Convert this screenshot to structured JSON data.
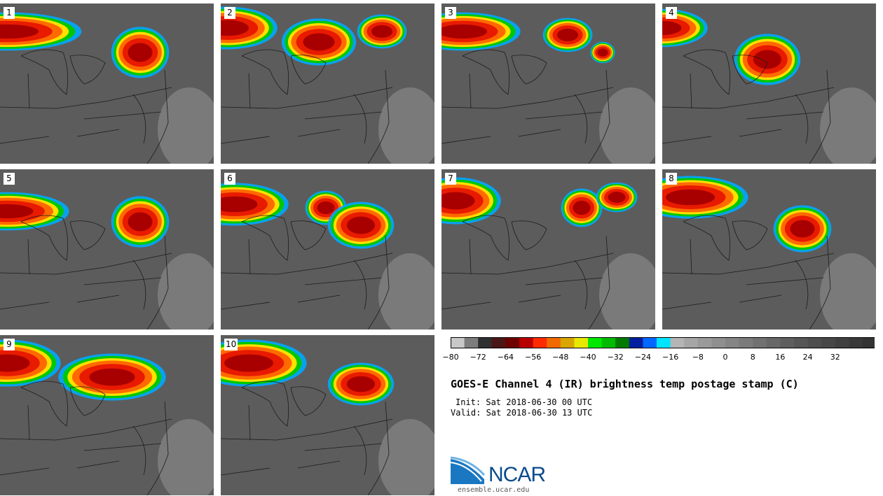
{
  "panels": [
    {
      "label": "1"
    },
    {
      "label": "2"
    },
    {
      "label": "3"
    },
    {
      "label": "4"
    },
    {
      "label": "5"
    },
    {
      "label": "6"
    },
    {
      "label": "7"
    },
    {
      "label": "8"
    },
    {
      "label": "9"
    },
    {
      "label": "10"
    }
  ],
  "colorbar": {
    "colors": [
      "#c8c8c8",
      "#7d7d7d",
      "#2f2f2f",
      "#4b1616",
      "#6e0000",
      "#b90000",
      "#ff2a00",
      "#f06a00",
      "#d9a600",
      "#e8e800",
      "#00e800",
      "#00bb00",
      "#007a00",
      "#001e9e",
      "#0068ff",
      "#00e5ff",
      "#b5b5b5",
      "#a6a6a6",
      "#9a9a9a",
      "#8f8f8f",
      "#858585",
      "#7b7b7b",
      "#717171",
      "#676767",
      "#5e5e5e",
      "#565656",
      "#4e4e4e",
      "#474747",
      "#404040",
      "#393939",
      "#333333"
    ],
    "ticks": [
      "−80",
      "−72",
      "−64",
      "−56",
      "−48",
      "−40",
      "−32",
      "−24",
      "−16",
      "−8",
      "0",
      "8",
      "16",
      "24",
      "32"
    ]
  },
  "title": "GOES-E Channel 4 (IR) brightness temp postage stamp (C)",
  "init": "Init: Sat 2018-06-30 00 UTC",
  "valid": "Valid: Sat 2018-06-30 13 UTC",
  "logo": {
    "text": "NCAR",
    "color": "#0a4b8c"
  },
  "site": "ensemble.ucar.edu"
}
